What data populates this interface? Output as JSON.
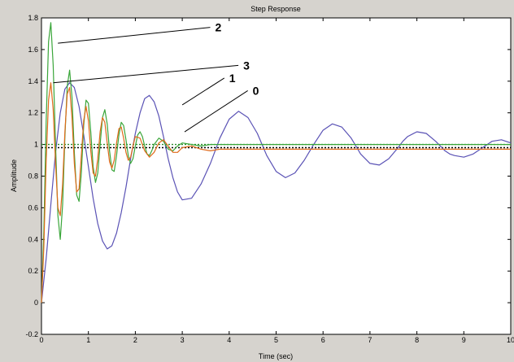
{
  "chart_data": {
    "type": "line",
    "title": "Step Response",
    "xlabel": "Time (sec)",
    "ylabel": "Amplitude",
    "xlim": [
      0,
      10
    ],
    "ylim": [
      -0.2,
      1.8
    ],
    "x_ticks": [
      0,
      1,
      2,
      3,
      4,
      5,
      6,
      7,
      8,
      9,
      10
    ],
    "y_ticks": [
      -0.2,
      0,
      0.2,
      0.4,
      0.6,
      0.8,
      1,
      1.2,
      1.4,
      1.6,
      1.8
    ],
    "grid": false,
    "colors": {
      "background": "#d6d3ce",
      "plot_background": "#ffffff",
      "series_blue": "#5a52b5",
      "series_green": "#3aa63a",
      "series_orange": "#e06a1a",
      "reference_black": "#000000",
      "reference_green": "#2a8a2a"
    },
    "series": [
      {
        "label": "0",
        "color": "#5a52b5",
        "x": [
          0,
          0.1,
          0.2,
          0.3,
          0.4,
          0.5,
          0.6,
          0.7,
          0.8,
          0.9,
          1.0,
          1.1,
          1.2,
          1.3,
          1.4,
          1.5,
          1.6,
          1.7,
          1.8,
          1.9,
          2.0,
          2.1,
          2.2,
          2.3,
          2.4,
          2.5,
          2.6,
          2.7,
          2.8,
          2.9,
          3.0,
          3.2,
          3.4,
          3.6,
          3.7,
          3.8,
          4.0,
          4.2,
          4.4,
          4.6,
          4.7,
          4.8,
          5.0,
          5.2,
          5.4,
          5.6,
          5.8,
          6.0,
          6.2,
          6.4,
          6.6,
          6.7,
          6.8,
          7.0,
          7.2,
          7.4,
          7.6,
          7.7,
          7.8,
          8.0,
          8.2,
          8.4,
          8.6,
          8.7,
          8.8,
          9.0,
          9.2,
          9.4,
          9.6,
          9.8,
          10.0
        ],
        "y": [
          0,
          0.28,
          0.62,
          0.95,
          1.2,
          1.35,
          1.39,
          1.36,
          1.24,
          1.06,
          0.86,
          0.66,
          0.5,
          0.39,
          0.34,
          0.36,
          0.44,
          0.57,
          0.73,
          0.91,
          1.07,
          1.2,
          1.29,
          1.31,
          1.27,
          1.18,
          1.05,
          0.91,
          0.79,
          0.7,
          0.65,
          0.66,
          0.75,
          0.88,
          0.96,
          1.04,
          1.16,
          1.21,
          1.17,
          1.07,
          1.0,
          0.93,
          0.83,
          0.79,
          0.82,
          0.9,
          1.0,
          1.09,
          1.13,
          1.11,
          1.04,
          0.99,
          0.94,
          0.88,
          0.87,
          0.91,
          0.98,
          1.02,
          1.05,
          1.08,
          1.07,
          1.02,
          0.96,
          0.94,
          0.93,
          0.92,
          0.94,
          0.98,
          1.02,
          1.03,
          1.01
        ]
      },
      {
        "label": "2",
        "color": "#3aa63a",
        "x": [
          0,
          0.05,
          0.1,
          0.15,
          0.2,
          0.25,
          0.3,
          0.35,
          0.4,
          0.45,
          0.5,
          0.55,
          0.6,
          0.65,
          0.7,
          0.75,
          0.8,
          0.85,
          0.9,
          0.95,
          1.0,
          1.05,
          1.1,
          1.15,
          1.2,
          1.25,
          1.3,
          1.35,
          1.4,
          1.45,
          1.5,
          1.55,
          1.6,
          1.65,
          1.7,
          1.75,
          1.8,
          1.85,
          1.9,
          1.95,
          2.0,
          2.05,
          2.1,
          2.15,
          2.2,
          2.25,
          2.3,
          2.35,
          2.4,
          2.5,
          2.6,
          2.7,
          2.8,
          2.9,
          3.0,
          3.2,
          3.4,
          3.6,
          3.8,
          4.0,
          5.0,
          6.0,
          7.0,
          8.0,
          9.0,
          10.0
        ],
        "y": [
          0,
          0.45,
          1.15,
          1.65,
          1.77,
          1.5,
          1.0,
          0.55,
          0.4,
          0.62,
          1.05,
          1.37,
          1.47,
          1.3,
          0.95,
          0.68,
          0.64,
          0.82,
          1.12,
          1.28,
          1.26,
          1.08,
          0.86,
          0.76,
          0.82,
          1.0,
          1.17,
          1.22,
          1.13,
          0.96,
          0.84,
          0.83,
          0.93,
          1.06,
          1.14,
          1.12,
          1.03,
          0.93,
          0.88,
          0.91,
          0.99,
          1.06,
          1.08,
          1.05,
          0.99,
          0.94,
          0.93,
          0.96,
          1.0,
          1.04,
          1.02,
          0.97,
          0.96,
          0.99,
          1.01,
          1.0,
          0.99,
          1.0,
          1.0,
          1.0,
          1.0,
          1.0,
          1.0,
          1.0,
          1.0,
          1.0
        ]
      },
      {
        "label": "3",
        "color": "#e06a1a",
        "x": [
          0,
          0.05,
          0.1,
          0.15,
          0.2,
          0.25,
          0.3,
          0.35,
          0.4,
          0.45,
          0.5,
          0.55,
          0.6,
          0.65,
          0.7,
          0.75,
          0.8,
          0.85,
          0.9,
          0.95,
          1.0,
          1.05,
          1.1,
          1.15,
          1.2,
          1.25,
          1.3,
          1.35,
          1.4,
          1.45,
          1.5,
          1.55,
          1.6,
          1.65,
          1.7,
          1.75,
          1.8,
          1.85,
          1.9,
          1.95,
          2.0,
          2.1,
          2.2,
          2.3,
          2.4,
          2.5,
          2.6,
          2.7,
          2.8,
          2.9,
          3.0,
          3.2,
          3.4,
          3.6,
          3.8,
          4.0,
          4.5,
          5.0,
          6.0,
          7.0,
          8.0,
          9.0,
          10.0
        ],
        "y": [
          0,
          0.35,
          0.9,
          1.28,
          1.39,
          1.22,
          0.88,
          0.6,
          0.55,
          0.75,
          1.08,
          1.32,
          1.36,
          1.17,
          0.88,
          0.7,
          0.72,
          0.93,
          1.15,
          1.24,
          1.15,
          0.96,
          0.82,
          0.8,
          0.91,
          1.08,
          1.17,
          1.14,
          1.01,
          0.89,
          0.85,
          0.9,
          1.01,
          1.1,
          1.11,
          1.04,
          0.95,
          0.9,
          0.92,
          0.99,
          1.05,
          1.04,
          0.96,
          0.92,
          0.95,
          1.01,
          1.03,
          0.99,
          0.95,
          0.95,
          0.98,
          0.99,
          0.97,
          0.96,
          0.97,
          0.97,
          0.97,
          0.97,
          0.97,
          0.97,
          0.97,
          0.97,
          0.97
        ]
      }
    ],
    "reference_lines": [
      {
        "y": 1.0,
        "style": "dotted",
        "color": "#2a8a2a"
      },
      {
        "y": 0.98,
        "style": "dotted",
        "color": "#000000"
      }
    ],
    "annotations": [
      {
        "text": "2",
        "tip": {
          "x": 0.35,
          "y": 1.64
        },
        "label_pos": {
          "x": 3.7,
          "y": 1.74
        }
      },
      {
        "text": "3",
        "tip": {
          "x": 0.25,
          "y": 1.39
        },
        "label_pos": {
          "x": 4.3,
          "y": 1.5
        }
      },
      {
        "text": "1",
        "tip": {
          "x": 3.0,
          "y": 1.25
        },
        "label_pos": {
          "x": 4.0,
          "y": 1.42
        }
      },
      {
        "text": "0",
        "tip": {
          "x": 3.05,
          "y": 1.08
        },
        "label_pos": {
          "x": 4.5,
          "y": 1.34
        }
      }
    ]
  }
}
